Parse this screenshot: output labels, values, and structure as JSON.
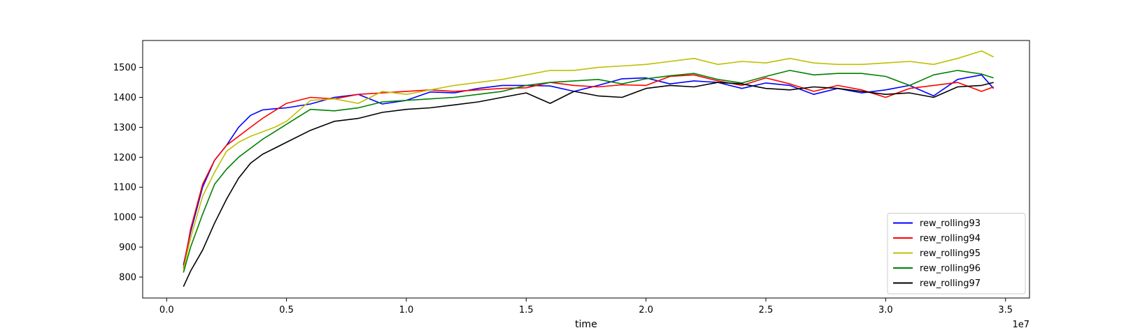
{
  "chart_data": {
    "type": "line",
    "title": "",
    "xlabel": "time",
    "ylabel": "",
    "x_offset_label": "1e7",
    "xlim": [
      -0.1,
      3.6
    ],
    "ylim": [
      730,
      1590
    ],
    "x_ticks": [
      0.0,
      0.5,
      1.0,
      1.5,
      2.0,
      2.5,
      3.0,
      3.5
    ],
    "x_tick_labels": [
      "0.0",
      "0.5",
      "1.0",
      "1.5",
      "2.0",
      "2.5",
      "3.0",
      "3.5"
    ],
    "y_ticks": [
      800,
      900,
      1000,
      1100,
      1200,
      1300,
      1400,
      1500
    ],
    "y_tick_labels": [
      "800",
      "900",
      "1000",
      "1100",
      "1200",
      "1300",
      "1400",
      "1500"
    ],
    "grid": false,
    "legend_position": "lower-right",
    "series": [
      {
        "name": "rew_rolling93",
        "color": "#0000ff",
        "x": [
          0.07,
          0.1,
          0.15,
          0.2,
          0.25,
          0.3,
          0.35,
          0.4,
          0.45,
          0.5,
          0.6,
          0.7,
          0.8,
          0.9,
          1.0,
          1.1,
          1.2,
          1.3,
          1.4,
          1.5,
          1.6,
          1.7,
          1.8,
          1.9,
          2.0,
          2.1,
          2.2,
          2.3,
          2.4,
          2.5,
          2.6,
          2.7,
          2.8,
          2.9,
          3.0,
          3.1,
          3.2,
          3.3,
          3.4,
          3.45
        ],
        "y": [
          840,
          950,
          1100,
          1190,
          1240,
          1300,
          1340,
          1358,
          1362,
          1365,
          1378,
          1400,
          1410,
          1378,
          1390,
          1418,
          1415,
          1430,
          1440,
          1440,
          1438,
          1420,
          1440,
          1462,
          1465,
          1445,
          1455,
          1450,
          1430,
          1448,
          1440,
          1410,
          1430,
          1415,
          1425,
          1440,
          1405,
          1460,
          1475,
          1430
        ]
      },
      {
        "name": "rew_rolling94",
        "color": "#ff0000",
        "x": [
          0.07,
          0.1,
          0.15,
          0.2,
          0.25,
          0.3,
          0.35,
          0.4,
          0.45,
          0.5,
          0.6,
          0.7,
          0.8,
          0.9,
          1.0,
          1.1,
          1.2,
          1.3,
          1.4,
          1.5,
          1.6,
          1.7,
          1.8,
          1.9,
          2.0,
          2.1,
          2.2,
          2.3,
          2.4,
          2.5,
          2.6,
          2.7,
          2.8,
          2.9,
          3.0,
          3.1,
          3.2,
          3.3,
          3.4,
          3.45
        ],
        "y": [
          830,
          960,
          1110,
          1190,
          1240,
          1270,
          1300,
          1330,
          1355,
          1380,
          1400,
          1395,
          1410,
          1415,
          1420,
          1425,
          1420,
          1425,
          1430,
          1432,
          1450,
          1440,
          1435,
          1442,
          1440,
          1470,
          1475,
          1455,
          1440,
          1465,
          1445,
          1420,
          1440,
          1425,
          1400,
          1430,
          1440,
          1450,
          1420,
          1435
        ]
      },
      {
        "name": "rew_rolling95",
        "color": "#bfbf00",
        "x": [
          0.07,
          0.1,
          0.15,
          0.2,
          0.25,
          0.3,
          0.35,
          0.4,
          0.45,
          0.5,
          0.6,
          0.7,
          0.8,
          0.9,
          1.0,
          1.1,
          1.2,
          1.3,
          1.4,
          1.5,
          1.6,
          1.7,
          1.8,
          1.9,
          2.0,
          2.1,
          2.2,
          2.3,
          2.4,
          2.5,
          2.6,
          2.7,
          2.8,
          2.9,
          3.0,
          3.1,
          3.2,
          3.3,
          3.4,
          3.45
        ],
        "y": [
          825,
          930,
          1070,
          1150,
          1220,
          1250,
          1270,
          1285,
          1300,
          1320,
          1390,
          1395,
          1380,
          1420,
          1410,
          1425,
          1440,
          1450,
          1460,
          1475,
          1490,
          1490,
          1500,
          1505,
          1510,
          1520,
          1530,
          1510,
          1520,
          1515,
          1530,
          1515,
          1510,
          1510,
          1515,
          1520,
          1510,
          1530,
          1555,
          1535
        ]
      },
      {
        "name": "rew_rolling96",
        "color": "#008000",
        "x": [
          0.07,
          0.1,
          0.15,
          0.2,
          0.25,
          0.3,
          0.35,
          0.4,
          0.45,
          0.5,
          0.6,
          0.7,
          0.8,
          0.9,
          1.0,
          1.1,
          1.2,
          1.3,
          1.4,
          1.5,
          1.6,
          1.7,
          1.8,
          1.9,
          2.0,
          2.1,
          2.2,
          2.3,
          2.4,
          2.5,
          2.6,
          2.7,
          2.8,
          2.9,
          3.0,
          3.1,
          3.2,
          3.3,
          3.4,
          3.45
        ],
        "y": [
          815,
          900,
          1010,
          1110,
          1160,
          1200,
          1230,
          1260,
          1285,
          1310,
          1360,
          1355,
          1365,
          1385,
          1390,
          1395,
          1400,
          1410,
          1420,
          1440,
          1450,
          1455,
          1460,
          1445,
          1462,
          1472,
          1480,
          1460,
          1448,
          1470,
          1490,
          1475,
          1480,
          1480,
          1470,
          1440,
          1475,
          1490,
          1478,
          1465
        ]
      },
      {
        "name": "rew_rolling97",
        "color": "#000000",
        "x": [
          0.07,
          0.1,
          0.15,
          0.2,
          0.25,
          0.3,
          0.35,
          0.4,
          0.45,
          0.5,
          0.6,
          0.7,
          0.8,
          0.9,
          1.0,
          1.1,
          1.2,
          1.3,
          1.4,
          1.5,
          1.6,
          1.7,
          1.8,
          1.9,
          2.0,
          2.1,
          2.2,
          2.3,
          2.4,
          2.5,
          2.6,
          2.7,
          2.8,
          2.9,
          3.0,
          3.1,
          3.2,
          3.3,
          3.4,
          3.45
        ],
        "y": [
          768,
          820,
          890,
          980,
          1060,
          1130,
          1180,
          1210,
          1230,
          1250,
          1290,
          1320,
          1330,
          1350,
          1360,
          1365,
          1375,
          1385,
          1400,
          1415,
          1380,
          1420,
          1405,
          1400,
          1430,
          1440,
          1435,
          1450,
          1445,
          1430,
          1425,
          1435,
          1430,
          1420,
          1410,
          1415,
          1400,
          1435,
          1440,
          1450
        ]
      }
    ]
  }
}
